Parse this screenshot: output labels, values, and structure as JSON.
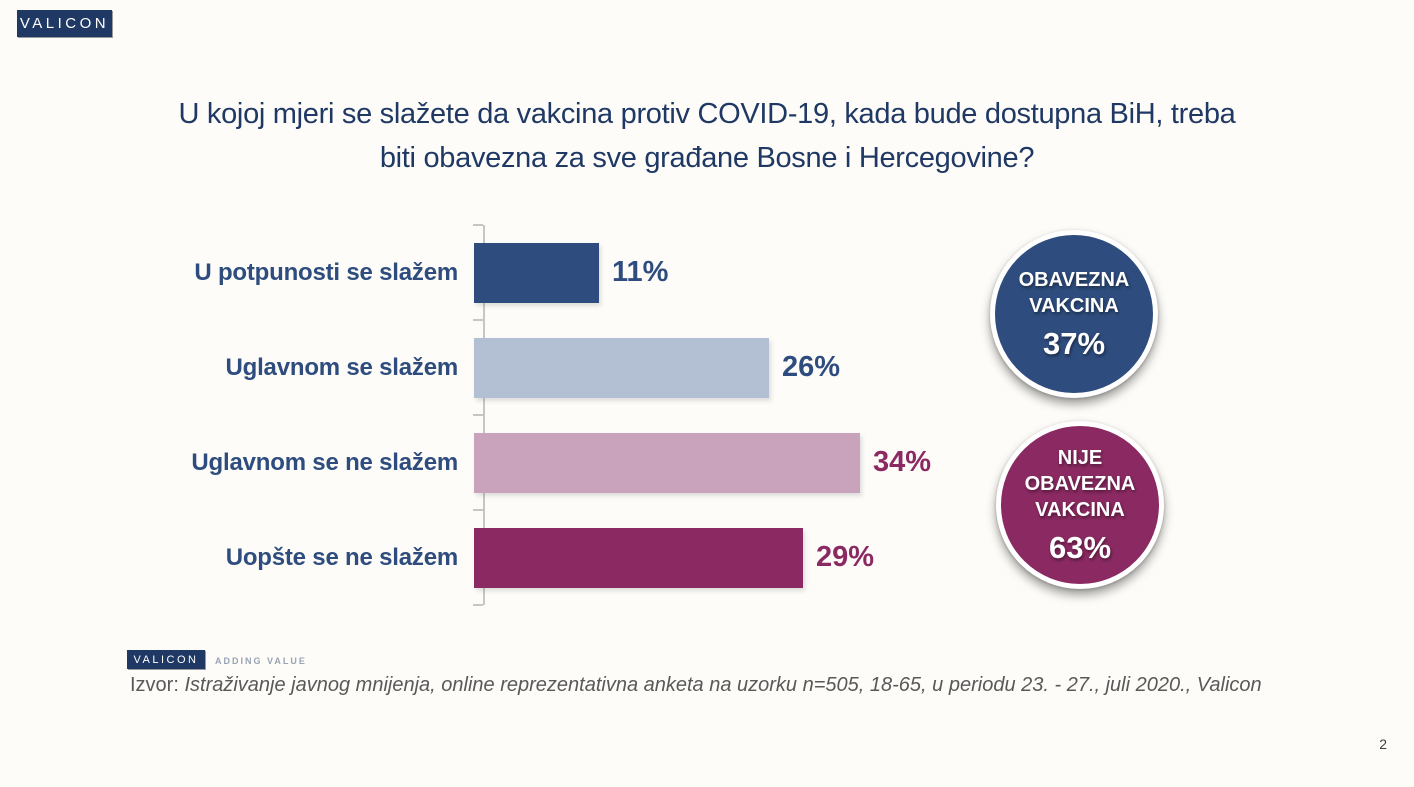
{
  "slide": {
    "logo_text": "VALICON",
    "title_line1": "U kojoj mjeri se slažete da vakcina protiv COVID-19, kada bude dostupna BiH, treba",
    "title_line2": "biti obavezna za sve građane Bosne i Hercegovine?",
    "page_number": "2"
  },
  "chart_data": {
    "type": "bar",
    "orientation": "horizontal",
    "title": "U kojoj mjeri se slažete da vakcina protiv COVID-19, kada bude dostupna BiH, treba biti obavezna za sve građane Bosne i Hercegovine?",
    "categories": [
      "U potpunosti se slažem",
      "Uglavnom se slažem",
      "Uglavnom se ne slažem",
      "Uopšte se ne slažem"
    ],
    "values": [
      11,
      26,
      34,
      29
    ],
    "value_labels": [
      "11%",
      "26%",
      "34%",
      "29%"
    ],
    "bar_colors": [
      "#2E4D7E",
      "#B3BFD2",
      "#C9A2BC",
      "#8B2A62"
    ],
    "value_label_colors": [
      "#2E4D7E",
      "#2E4D7E",
      "#8B2A62",
      "#8B2A62"
    ],
    "category_label_color": "#2E4D7E",
    "axis_color": "#C6C6C6",
    "xlim": [
      0,
      40
    ],
    "grid": false,
    "legend": false,
    "unit": "%"
  },
  "summary_badges": [
    {
      "name": "obavezna-vakcina",
      "label": "OBAVEZNA\nVAKCINA",
      "value": "37%",
      "color": "#2E4D7E"
    },
    {
      "name": "nije-obavezna-vakcina",
      "label": "NIJE\nOBAVEZNA\nVAKCINA",
      "value": "63%",
      "color": "#8B2A62"
    }
  ],
  "footer": {
    "logo_text": "VALICON",
    "logo_tagline": "ADDING VALUE",
    "source_prefix": "Izvor:",
    "source_text": "Istraživanje javnog mnijenja, online reprezentativna anketa na uzorku n=505, 18-65, u periodu 23. - 27., juli 2020., Valicon"
  }
}
